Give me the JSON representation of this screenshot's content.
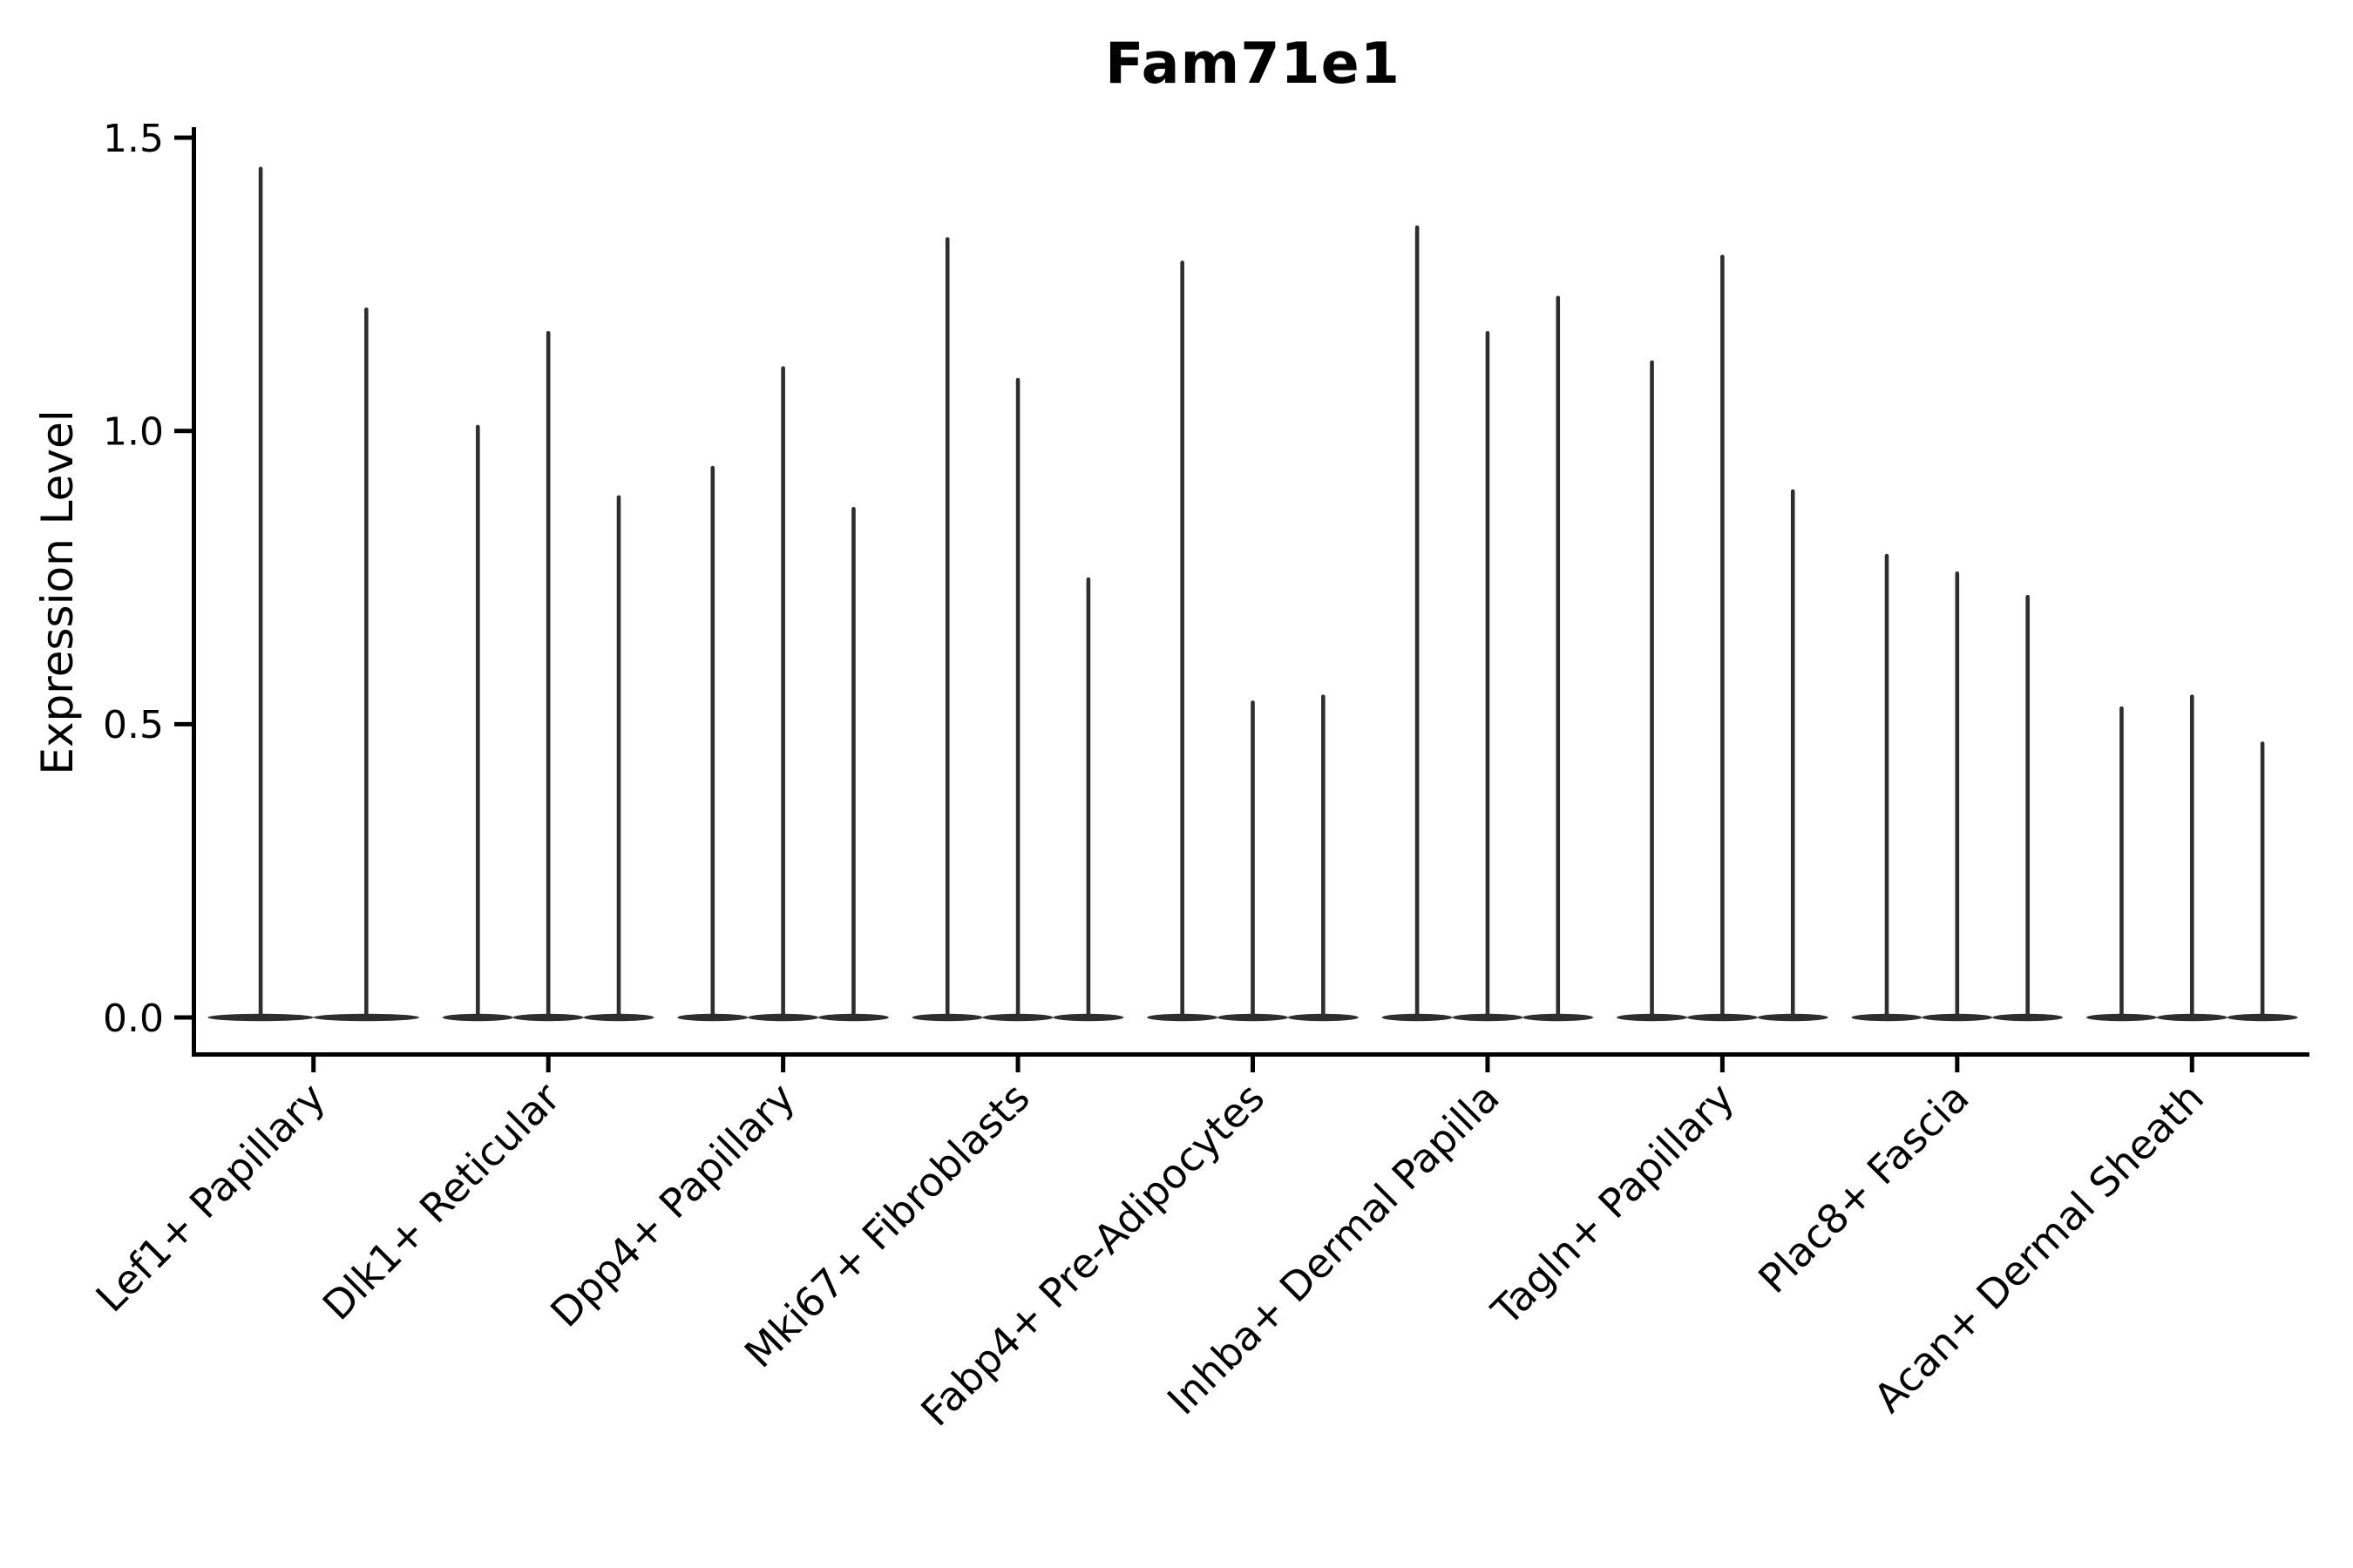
{
  "figure": {
    "background_color": "#ffffff"
  },
  "chart_data": {
    "type": "violin",
    "title": "Fam71e1",
    "ylabel": "Expression Level",
    "xlabel": "",
    "grid": false,
    "legend": "none",
    "axis_color": "#000000",
    "violin_color": "#2e2e2e",
    "text_color": "#000000",
    "ylim": [
      -0.07,
      1.52
    ],
    "ytick_values": [
      0.0,
      0.5,
      1.0,
      1.5
    ],
    "ytick_labels": [
      "0.0",
      "0.5",
      "1.0",
      "1.5"
    ],
    "x_tick_label_rotation_deg": 45,
    "groups": [
      {
        "label": "Lef1+ Papillary",
        "violin_peaks": [
          1.45,
          1.21
        ]
      },
      {
        "label": "Dlk1+ Reticular",
        "violin_peaks": [
          1.01,
          1.17,
          0.89
        ]
      },
      {
        "label": "Dpp4+ Papillary",
        "violin_peaks": [
          0.94,
          1.11,
          0.87
        ]
      },
      {
        "label": "Mki67+ Fibroblasts",
        "violin_peaks": [
          1.33,
          1.09,
          0.75
        ]
      },
      {
        "label": "Fabp4+ Pre-Adipocytes",
        "violin_peaks": [
          1.29,
          0.54,
          0.55
        ]
      },
      {
        "label": "Inhba+ Dermal Papilla",
        "violin_peaks": [
          1.35,
          1.17,
          1.23
        ]
      },
      {
        "label": "Tagln+ Papillary",
        "violin_peaks": [
          1.12,
          1.3,
          0.9
        ]
      },
      {
        "label": "Plac8+ Fascia",
        "violin_peaks": [
          0.79,
          0.76,
          0.72
        ]
      },
      {
        "label": "Acan+ Dermal Sheath",
        "violin_peaks": [
          0.53,
          0.55,
          0.47
        ]
      }
    ]
  }
}
